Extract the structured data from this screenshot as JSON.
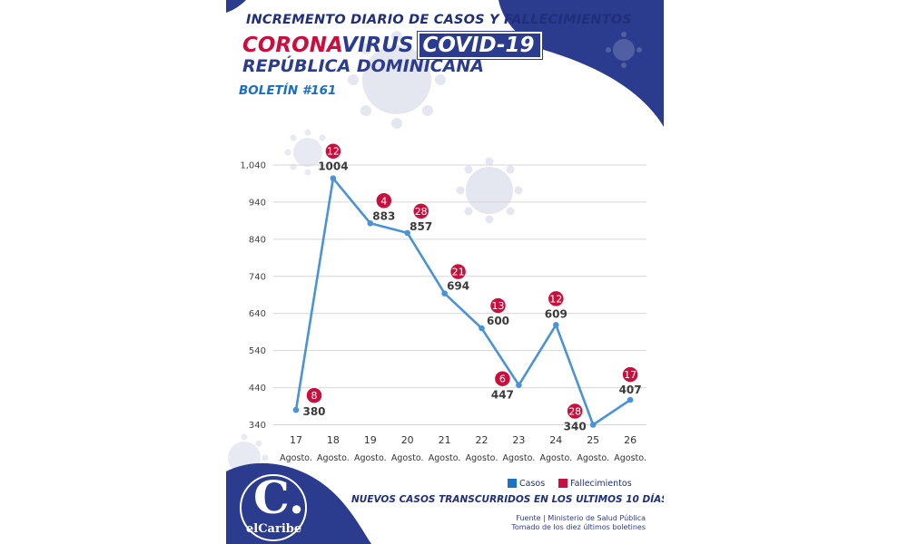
{
  "header": {
    "headline": "INCREMENTO DIARIO DE CASOS Y FALLECIMIENTOS",
    "brand_corona": "CORONA",
    "brand_virus": "VIRUS",
    "brand_covid": "COVID-19",
    "country": "REPÚBLICA DOMINICANA",
    "bulletin": "BOLETÍN #161"
  },
  "colors": {
    "navy": "#2b3c8e",
    "line": "#4a93d6",
    "death_badge": "#c8103e",
    "legend_casos": "#1a73c4",
    "legend_fallecimientos": "#c8103e"
  },
  "chart_data": {
    "type": "line",
    "categories": [
      "17",
      "18",
      "19",
      "20",
      "21",
      "22",
      "23",
      "24",
      "25",
      "26"
    ],
    "category_sublabel": "Agosto.",
    "series": [
      {
        "name": "Casos",
        "values": [
          380,
          1004,
          883,
          857,
          694,
          600,
          447,
          609,
          340,
          407
        ]
      },
      {
        "name": "Fallecimientos",
        "values": [
          8,
          12,
          4,
          28,
          21,
          13,
          6,
          12,
          28,
          17
        ]
      }
    ],
    "yticks": [
      "340",
      "440",
      "540",
      "640",
      "740",
      "840",
      "940",
      "1,040"
    ],
    "ylim": [
      340,
      1040
    ],
    "grid": true,
    "legend_position": "bottom-right"
  },
  "legend": {
    "casos": "Casos",
    "fallecimientos": "Fallecimientos"
  },
  "footer": {
    "title": "NUEVOS CASOS TRANSCURRIDOS EN LOS ULTIMOS 10 DÍAS",
    "source_line1": "Fuente | Ministerio de Salud Pública",
    "source_line2": "Tomado de  los diez últimos boletines"
  },
  "logo": {
    "letter": "C.",
    "name": "elCaribe"
  }
}
